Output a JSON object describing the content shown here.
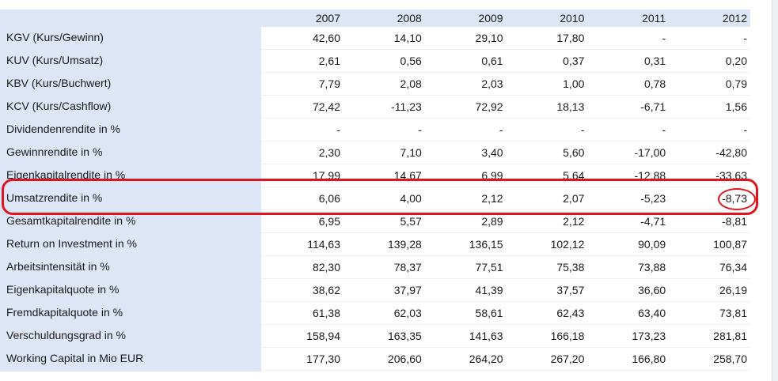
{
  "table": {
    "header": [
      "2007",
      "2008",
      "2009",
      "2010",
      "2011",
      "2012"
    ],
    "rows": [
      {
        "label": "KGV (Kurs/Gewinn)",
        "values": [
          "42,60",
          "14,10",
          "29,10",
          "17,80",
          "-",
          "-"
        ]
      },
      {
        "label": "KUV (Kurs/Umsatz)",
        "values": [
          "2,61",
          "0,56",
          "0,61",
          "0,37",
          "0,31",
          "0,20"
        ]
      },
      {
        "label": "KBV (Kurs/Buchwert)",
        "values": [
          "7,79",
          "2,08",
          "2,03",
          "1,00",
          "0,78",
          "0,79"
        ]
      },
      {
        "label": "KCV (Kurs/Cashflow)",
        "values": [
          "72,42",
          "-11,23",
          "72,92",
          "18,13",
          "-6,71",
          "1,56"
        ]
      },
      {
        "label": "Dividendenrendite in %",
        "values": [
          "-",
          "-",
          "-",
          "-",
          "-",
          "-"
        ]
      },
      {
        "label": "Gewinnrendite in %",
        "values": [
          "2,30",
          "7,10",
          "3,40",
          "5,60",
          "-17,00",
          "-42,80"
        ]
      },
      {
        "label": "Eigenkapitalrendite in %",
        "values": [
          "17,99",
          "14,67",
          "6,99",
          "5,64",
          "-12,88",
          "-33,63"
        ]
      },
      {
        "label": "Umsatzrendite in %",
        "values": [
          "6,06",
          "4,00",
          "2,12",
          "2,07",
          "-5,23",
          "-8,73"
        ]
      },
      {
        "label": "Gesamtkapitalrendite in %",
        "values": [
          "6,95",
          "5,57",
          "2,89",
          "2,12",
          "-4,71",
          "-8,81"
        ]
      },
      {
        "label": "Return on Investment in %",
        "values": [
          "114,63",
          "139,28",
          "136,15",
          "102,12",
          "90,09",
          "100,87"
        ]
      },
      {
        "label": "Arbeitsintensität in %",
        "values": [
          "82,30",
          "78,37",
          "77,51",
          "75,38",
          "73,88",
          "76,34"
        ]
      },
      {
        "label": "Eigenkapitalquote in %",
        "values": [
          "38,62",
          "37,97",
          "41,39",
          "37,57",
          "36,60",
          "26,19"
        ]
      },
      {
        "label": "Fremdkapitalquote in %",
        "values": [
          "61,38",
          "62,03",
          "58,61",
          "62,43",
          "63,40",
          "73,81"
        ]
      },
      {
        "label": "Verschuldungsgrad in %",
        "values": [
          "158,94",
          "163,35",
          "141,63",
          "166,18",
          "173,23",
          "281,81"
        ]
      },
      {
        "label": "Working Capital in Mio EUR",
        "values": [
          "177,30",
          "206,60",
          "264,20",
          "267,20",
          "166,80",
          "258,70"
        ]
      }
    ]
  }
}
